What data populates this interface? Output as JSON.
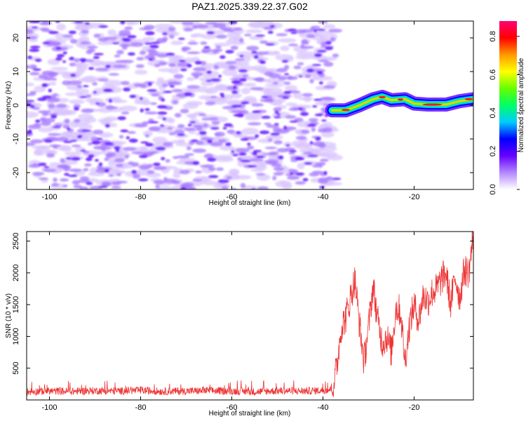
{
  "chart_data": [
    {
      "type": "heatmap",
      "title": "PAZ1.2025.339.22.37.G02",
      "xlabel": "Height of straight line (km)",
      "ylabel": "Frequency (Hz)",
      "xlim": [
        -105,
        -7
      ],
      "ylim": [
        -25,
        25
      ],
      "xticks": [
        -100,
        -80,
        -60,
        -40,
        -20
      ],
      "xtick_labels": [
        "-100",
        "-80",
        "-60",
        "-40",
        "-20"
      ],
      "yticks": [
        -20,
        -10,
        0,
        10,
        20
      ],
      "ytick_labels": [
        "-20",
        "-10",
        "0",
        "10",
        "20"
      ],
      "noise_region_km": [
        -105,
        -37
      ],
      "signal_track": [
        {
          "x": -38,
          "y": -1.5
        },
        {
          "x": -35,
          "y": -1.5
        },
        {
          "x": -32,
          "y": 0.0
        },
        {
          "x": -29,
          "y": 1.8
        },
        {
          "x": -27,
          "y": 2.5
        },
        {
          "x": -25,
          "y": 1.5
        },
        {
          "x": -22,
          "y": 1.8
        },
        {
          "x": -20,
          "y": 0.5
        },
        {
          "x": -17,
          "y": 0.2
        },
        {
          "x": -13,
          "y": 0.2
        },
        {
          "x": -10,
          "y": 1.2
        },
        {
          "x": -7,
          "y": 1.8
        }
      ],
      "colorbar": {
        "label": "Normalized spectral amplitude",
        "range": [
          0.0,
          0.88
        ],
        "ticks": [
          0.0,
          0.2,
          0.4,
          0.6,
          0.8
        ],
        "tick_labels": [
          "0.0",
          "0.2",
          "0.4",
          "0.6",
          "0.8"
        ],
        "colors": [
          "#ffffff",
          "#b388ff",
          "#6600ff",
          "#0000ff",
          "#00ccff",
          "#00ff66",
          "#66ff00",
          "#ffff00",
          "#ff9900",
          "#ff0000",
          "#ff0077"
        ]
      }
    },
    {
      "type": "line",
      "title": "",
      "xlabel": "Height of straight line (km)",
      "ylabel": "SNR (10 * v/v)",
      "xlim": [
        -105,
        -7
      ],
      "ylim": [
        0,
        2650
      ],
      "xticks": [
        -100,
        -80,
        -60,
        -40,
        -20
      ],
      "xtick_labels": [
        "-100",
        "-80",
        "-60",
        "-40",
        "-20"
      ],
      "yticks": [
        500,
        1000,
        1500,
        2000,
        2500
      ],
      "ytick_labels": [
        "500",
        "1000",
        "1500",
        "2000",
        "2500"
      ],
      "series": [
        {
          "name": "SNR",
          "color": "#ee3333",
          "x": [
            -105,
            -100,
            -95,
            -90,
            -85,
            -80,
            -75,
            -70,
            -65,
            -60,
            -55,
            -50,
            -45,
            -40,
            -38,
            -37,
            -36,
            -35,
            -34,
            -33,
            -32,
            -31,
            -30,
            -29,
            -28,
            -27,
            -26,
            -25,
            -24,
            -23,
            -22,
            -21,
            -20,
            -19,
            -18,
            -17,
            -16,
            -15,
            -14,
            -13,
            -12,
            -11,
            -10,
            -9,
            -8,
            -7
          ],
          "y": [
            130,
            140,
            135,
            145,
            140,
            150,
            135,
            140,
            145,
            140,
            130,
            145,
            140,
            150,
            170,
            500,
            1150,
            1300,
            1600,
            1900,
            1200,
            600,
            1150,
            1800,
            1250,
            900,
            1000,
            750,
            1450,
            1400,
            600,
            1200,
            1500,
            1250,
            1650,
            1550,
            1700,
            1750,
            1900,
            2000,
            1500,
            1950,
            1600,
            2050,
            2000,
            2600
          ]
        }
      ]
    }
  ]
}
